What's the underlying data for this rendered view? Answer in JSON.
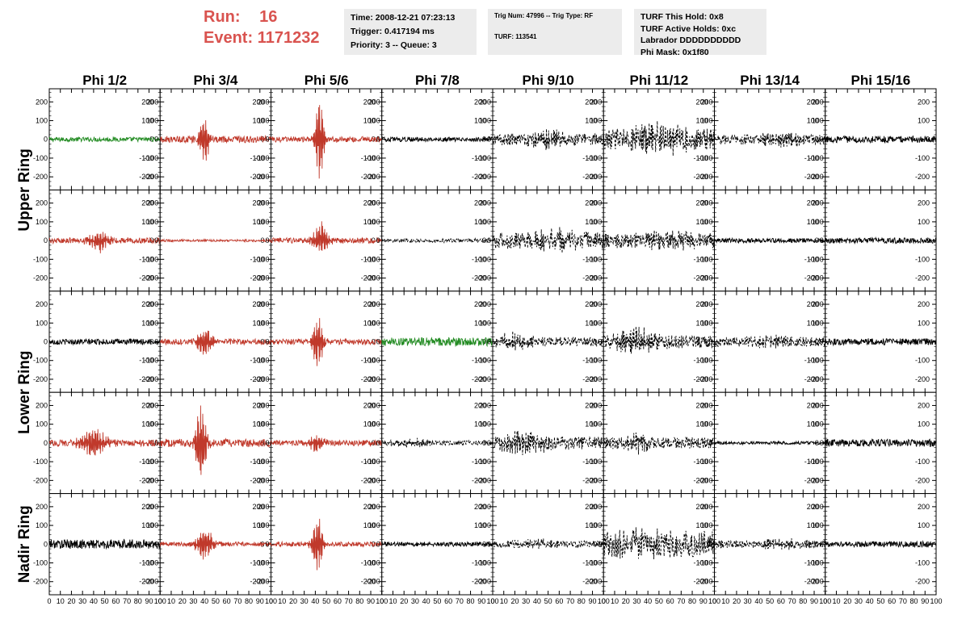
{
  "header": {
    "run_label": "Run:",
    "run_value": "16",
    "event_label": "Event:",
    "event_value": "1171232",
    "time": "Time: 2008-12-21 07:23:13",
    "trigger": "Trigger: 0.417194 ms",
    "priority": "Priority: 3 -- Queue: 3",
    "trig_num": "Trig Num: 47996 -- Trig Type: RF",
    "turf": "TURF: 113541",
    "turf_hold": "TURF This Hold: 0x8",
    "turf_active": "TURF Active Holds: 0xc",
    "labrador": "Labrador DDDDDDDDDD",
    "phi_mask": "Phi Mask: 0x1f80",
    "accent_color": "#d9534f"
  },
  "chart_data": {
    "type": "line",
    "title": "",
    "columns": [
      "Phi 1/2",
      "Phi 3/4",
      "Phi 5/6",
      "Phi 7/8",
      "Phi 9/10",
      "Phi 11/12",
      "Phi 13/14",
      "Phi 15/16"
    ],
    "rows": [
      "Upper Ring",
      "Upper Ring",
      "Lower Ring",
      "Lower Ring",
      "Nadir Ring"
    ],
    "row_label_groups": [
      {
        "label": "Upper Ring",
        "rows": [
          0,
          1
        ]
      },
      {
        "label": "Lower Ring",
        "rows": [
          2,
          3
        ]
      },
      {
        "label": "Nadir Ring",
        "rows": [
          4
        ]
      }
    ],
    "ylim": [
      -270,
      270
    ],
    "yticks": [
      -200,
      -100,
      0,
      100,
      200
    ],
    "xlim": [
      0,
      100
    ],
    "xticks": [
      0,
      10,
      20,
      30,
      40,
      50,
      60,
      70,
      80,
      90,
      100
    ],
    "colors": {
      "green": "#228b22",
      "red": "#c0392b",
      "black": "#000000"
    },
    "panels": [
      [
        {
          "color": "green",
          "style": "solid",
          "amp": 12,
          "burst_t": 0,
          "burst_amp": 0,
          "burst_w": 0
        },
        {
          "color": "red",
          "style": "solid",
          "amp": 18,
          "burst_t": 40,
          "burst_amp": 150,
          "burst_w": 4
        },
        {
          "color": "red",
          "style": "solid",
          "amp": 15,
          "burst_t": 44,
          "burst_amp": 260,
          "burst_w": 4
        },
        {
          "color": "black",
          "style": "solid",
          "amp": 12,
          "burst_t": 0,
          "burst_amp": 0,
          "burst_w": 0
        },
        {
          "color": "black",
          "style": "dashed",
          "amp": 30,
          "burst_t": 50,
          "burst_amp": 40,
          "burst_w": 20
        },
        {
          "color": "black",
          "style": "dashed",
          "amp": 55,
          "burst_t": 50,
          "burst_amp": 60,
          "burst_w": 25
        },
        {
          "color": "black",
          "style": "dashed",
          "amp": 25,
          "burst_t": 60,
          "burst_amp": 30,
          "burst_w": 20
        },
        {
          "color": "black",
          "style": "solid",
          "amp": 18,
          "burst_t": 0,
          "burst_amp": 0,
          "burst_w": 0
        }
      ],
      [
        {
          "color": "red",
          "style": "solid",
          "amp": 15,
          "burst_t": 45,
          "burst_amp": 60,
          "burst_w": 10
        },
        {
          "color": "red",
          "style": "solid",
          "amp": 6,
          "burst_t": 0,
          "burst_amp": 0,
          "burst_w": 0
        },
        {
          "color": "red",
          "style": "solid",
          "amp": 15,
          "burst_t": 45,
          "burst_amp": 95,
          "burst_w": 7
        },
        {
          "color": "black",
          "style": "dashed",
          "amp": 10,
          "burst_t": 0,
          "burst_amp": 0,
          "burst_w": 0
        },
        {
          "color": "black",
          "style": "dashed",
          "amp": 45,
          "burst_t": 55,
          "burst_amp": 35,
          "burst_w": 20
        },
        {
          "color": "black",
          "style": "dashed",
          "amp": 40,
          "burst_t": 60,
          "burst_amp": 30,
          "burst_w": 20
        },
        {
          "color": "black",
          "style": "solid",
          "amp": 12,
          "burst_t": 0,
          "burst_amp": 0,
          "burst_w": 0
        },
        {
          "color": "black",
          "style": "solid",
          "amp": 15,
          "burst_t": 0,
          "burst_amp": 0,
          "burst_w": 0
        }
      ],
      [
        {
          "color": "black",
          "style": "solid",
          "amp": 15,
          "burst_t": 0,
          "burst_amp": 0,
          "burst_w": 0
        },
        {
          "color": "red",
          "style": "solid",
          "amp": 15,
          "burst_t": 40,
          "burst_amp": 80,
          "burst_w": 8
        },
        {
          "color": "red",
          "style": "solid",
          "amp": 15,
          "burst_t": 42,
          "burst_amp": 160,
          "burst_w": 5
        },
        {
          "color": "green",
          "style": "solid",
          "amp": 22,
          "burst_t": 0,
          "burst_amp": 0,
          "burst_w": 0
        },
        {
          "color": "black",
          "style": "dashed",
          "amp": 25,
          "burst_t": 20,
          "burst_amp": 40,
          "burst_w": 15
        },
        {
          "color": "black",
          "style": "dashed",
          "amp": 35,
          "burst_t": 30,
          "burst_amp": 60,
          "burst_w": 20
        },
        {
          "color": "black",
          "style": "dashed",
          "amp": 25,
          "burst_t": 50,
          "burst_amp": 20,
          "burst_w": 20
        },
        {
          "color": "black",
          "style": "solid",
          "amp": 18,
          "burst_t": 0,
          "burst_amp": 0,
          "burst_w": 0
        }
      ],
      [
        {
          "color": "red",
          "style": "solid",
          "amp": 18,
          "burst_t": 40,
          "burst_amp": 80,
          "burst_w": 12
        },
        {
          "color": "red",
          "style": "solid",
          "amp": 22,
          "burst_t": 37,
          "burst_amp": 230,
          "burst_w": 5
        },
        {
          "color": "red",
          "style": "solid",
          "amp": 15,
          "burst_t": 40,
          "burst_amp": 50,
          "burst_w": 8
        },
        {
          "color": "black",
          "style": "dashed",
          "amp": 12,
          "burst_t": 30,
          "burst_amp": 20,
          "burst_w": 20
        },
        {
          "color": "black",
          "style": "dashed",
          "amp": 35,
          "burst_t": 30,
          "burst_amp": 50,
          "burst_w": 20
        },
        {
          "color": "black",
          "style": "dashed",
          "amp": 30,
          "burst_t": 30,
          "burst_amp": 40,
          "burst_w": 15
        },
        {
          "color": "black",
          "style": "solid",
          "amp": 8,
          "burst_t": 0,
          "burst_amp": 0,
          "burst_w": 0
        },
        {
          "color": "black",
          "style": "solid",
          "amp": 20,
          "burst_t": 0,
          "burst_amp": 0,
          "burst_w": 0
        }
      ],
      [
        {
          "color": "black",
          "style": "solid",
          "amp": 25,
          "burst_t": 0,
          "burst_amp": 0,
          "burst_w": 0
        },
        {
          "color": "red",
          "style": "solid",
          "amp": 12,
          "burst_t": 40,
          "burst_amp": 90,
          "burst_w": 8
        },
        {
          "color": "red",
          "style": "solid",
          "amp": 12,
          "burst_t": 42,
          "burst_amp": 170,
          "burst_w": 5
        },
        {
          "color": "black",
          "style": "solid",
          "amp": 12,
          "burst_t": 0,
          "burst_amp": 0,
          "burst_w": 0
        },
        {
          "color": "black",
          "style": "dashed",
          "amp": 18,
          "burst_t": 40,
          "burst_amp": 15,
          "burst_w": 20
        },
        {
          "color": "black",
          "style": "dashed",
          "amp": 70,
          "burst_t": 40,
          "burst_amp": 30,
          "burst_w": 25
        },
        {
          "color": "black",
          "style": "dashed",
          "amp": 20,
          "burst_t": 60,
          "burst_amp": 20,
          "burst_w": 20
        },
        {
          "color": "black",
          "style": "solid",
          "amp": 15,
          "burst_t": 0,
          "burst_amp": 0,
          "burst_w": 0
        }
      ]
    ]
  }
}
